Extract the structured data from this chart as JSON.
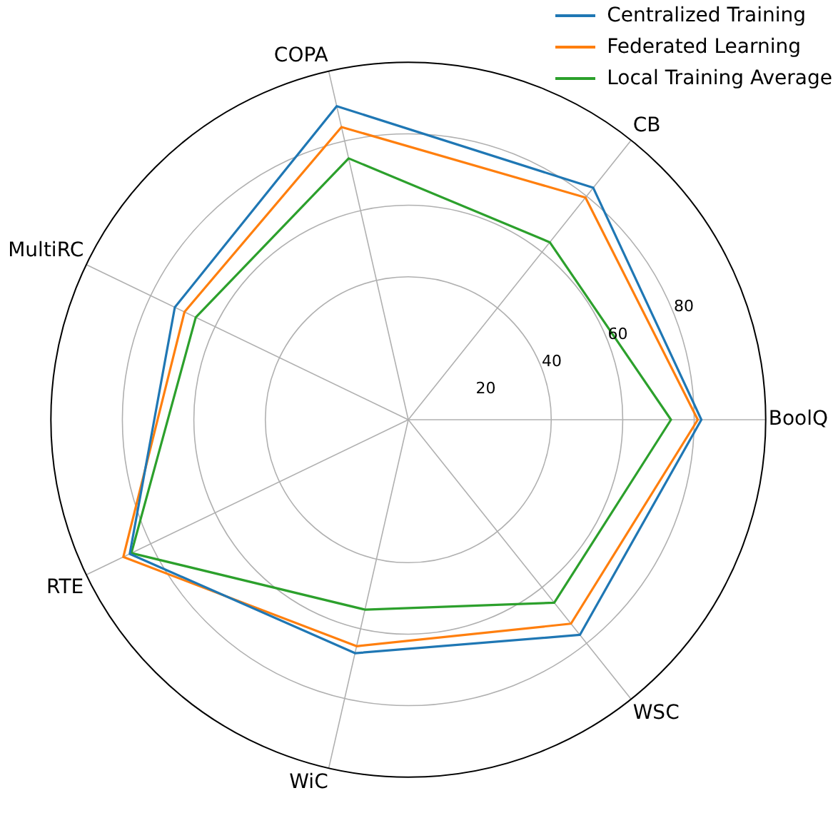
{
  "chart_data": {
    "type": "radar",
    "categories": [
      "CB",
      "BoolQ",
      "WSC",
      "WiC",
      "RTE",
      "MultiRC",
      "COPA"
    ],
    "series": [
      {
        "name": "Centralized Training",
        "color": "#1f77b4",
        "values": [
          83,
          82,
          77,
          67,
          86.5,
          72.5,
          90
        ]
      },
      {
        "name": "Federated Learning",
        "color": "#ff7f0e",
        "values": [
          79.5,
          81,
          73,
          65,
          88.5,
          69.5,
          84
        ]
      },
      {
        "name": "Local Training Average",
        "color": "#2ca02c",
        "values": [
          63.5,
          73.5,
          65.5,
          54.5,
          86,
          66,
          75
        ]
      }
    ],
    "ylim": [
      0,
      100
    ],
    "yticks": [
      20,
      40,
      60,
      80
    ],
    "grid": true,
    "legend": "top right",
    "marker": "none",
    "line_style": "solid"
  }
}
